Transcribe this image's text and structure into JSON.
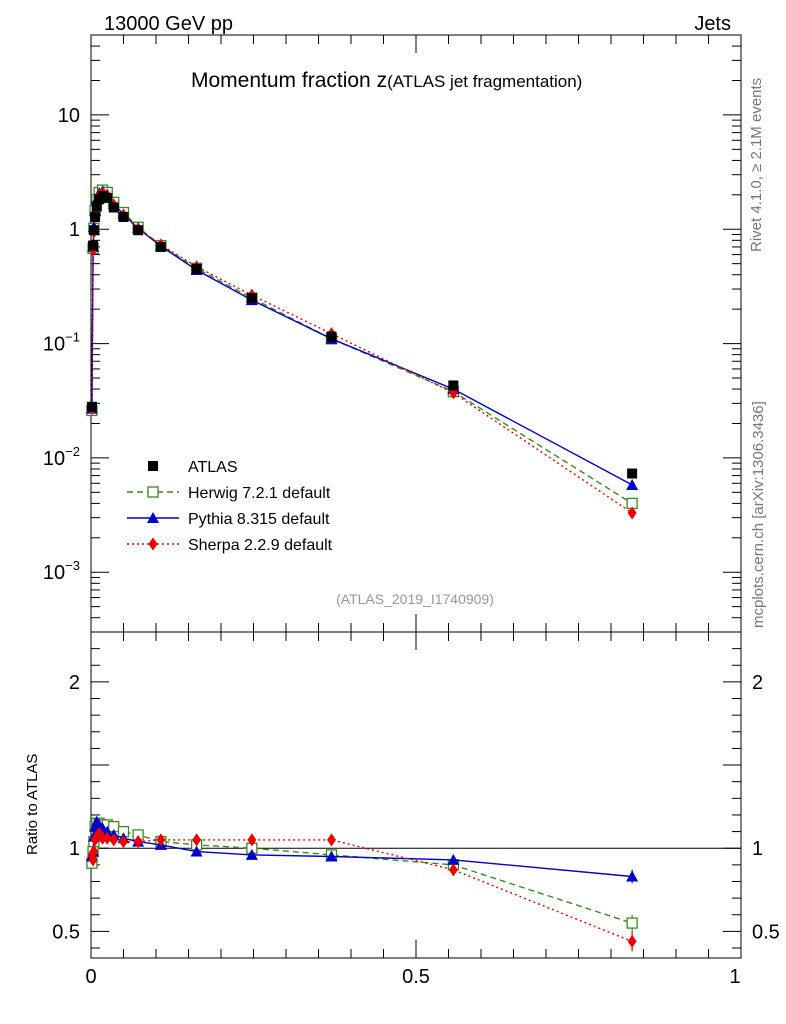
{
  "header": {
    "energy_label": "13000 GeV pp",
    "category_label": "Jets",
    "side_label_top": "Rivet 4.1.0, ≥ 2.1M events",
    "side_label_bottom": "mcplots.cern.ch [arXiv:1306.3436]"
  },
  "chart_data": [
    {
      "type": "line",
      "title_main": "Momentum fraction z",
      "title_sub": "(ATLAS jet fragmentation)",
      "watermark": "(ATLAS_2019_I1740909)",
      "yscale": "log",
      "xlim": [
        0,
        1
      ],
      "ylim": [
        0.0003,
        50
      ],
      "ytick_labels": [
        {
          "value": 10,
          "mant": "10",
          "exp": ""
        },
        {
          "value": 1,
          "mant": "1",
          "exp": ""
        },
        {
          "value": 0.1,
          "mant": "10",
          "exp": "−1"
        },
        {
          "value": 0.01,
          "mant": "10",
          "exp": "−2"
        },
        {
          "value": 0.001,
          "mant": "10",
          "exp": "−3"
        }
      ],
      "legend_position": "lower-left",
      "series": [
        {
          "name": "ATLAS",
          "role": "data",
          "color": "#000000",
          "marker": "square-filled",
          "line": "none",
          "x": [
            0.0014,
            0.0032,
            0.0045,
            0.0063,
            0.0089,
            0.0126,
            0.0178,
            0.025,
            0.035,
            0.05,
            0.0725,
            0.1075,
            0.1625,
            0.2475,
            0.37,
            0.5575,
            0.8325
          ],
          "y": [
            0.028,
            0.72,
            0.98,
            1.28,
            1.58,
            1.83,
            1.95,
            1.88,
            1.55,
            1.28,
            0.98,
            0.7,
            0.45,
            0.25,
            0.115,
            0.043,
            0.0073
          ]
        },
        {
          "name": "Herwig 7.2.1 default",
          "role": "mc",
          "color": "#3a8a1e",
          "marker": "square-open",
          "line": "dashed",
          "x": [
            0.0014,
            0.0032,
            0.0045,
            0.0063,
            0.0089,
            0.0126,
            0.0178,
            0.025,
            0.035,
            0.05,
            0.0725,
            0.1075,
            0.1625,
            0.2475,
            0.37,
            0.5575,
            0.8325
          ],
          "y": [
            0.026,
            0.68,
            1.02,
            1.45,
            1.82,
            2.1,
            2.2,
            2.1,
            1.72,
            1.4,
            1.04,
            0.72,
            0.455,
            0.25,
            0.11,
            0.038,
            0.004
          ]
        },
        {
          "name": "Pythia 8.315 default",
          "role": "mc",
          "color": "#0000cc",
          "marker": "triangle-filled",
          "line": "solid",
          "x": [
            0.0014,
            0.0032,
            0.0045,
            0.0063,
            0.0089,
            0.0126,
            0.0178,
            0.025,
            0.035,
            0.05,
            0.0725,
            0.1075,
            0.1625,
            0.2475,
            0.37,
            0.5575,
            0.8325
          ],
          "y": [
            0.027,
            0.7,
            1.05,
            1.45,
            1.82,
            2.07,
            2.15,
            2.02,
            1.65,
            1.35,
            1.02,
            0.71,
            0.44,
            0.24,
            0.11,
            0.04,
            0.0058
          ]
        },
        {
          "name": "Sherpa 2.2.9 default",
          "role": "mc",
          "color": "#ee0000",
          "marker": "diamond-filled",
          "line": "dotted",
          "x": [
            0.0014,
            0.0032,
            0.0045,
            0.0063,
            0.0089,
            0.0126,
            0.0178,
            0.025,
            0.035,
            0.05,
            0.0725,
            0.1075,
            0.1625,
            0.2475,
            0.37,
            0.5575,
            0.8325
          ],
          "y": [
            0.027,
            0.66,
            0.95,
            1.35,
            1.7,
            2.0,
            2.07,
            1.98,
            1.63,
            1.33,
            1.01,
            0.73,
            0.47,
            0.265,
            0.122,
            0.037,
            0.0033
          ]
        }
      ]
    },
    {
      "type": "line",
      "ylabel": "Ratio to ATLAS",
      "xlim": [
        0,
        1
      ],
      "ylim": [
        0.34,
        2.3
      ],
      "reference_line": 1,
      "ytick_labels": [
        {
          "value": 2,
          "label": "2"
        },
        {
          "value": 1,
          "label": "1"
        },
        {
          "value": 0.5,
          "label": "0.5"
        }
      ],
      "xtick_labels": [
        {
          "value": 0,
          "label": "0"
        },
        {
          "value": 0.5,
          "label": "0.5"
        },
        {
          "value": 1,
          "label": "1"
        }
      ],
      "series": [
        {
          "name": "Herwig 7.2.1 default",
          "color": "#3a8a1e",
          "marker": "square-open",
          "line": "dashed",
          "x": [
            0.0014,
            0.0032,
            0.0045,
            0.0063,
            0.0089,
            0.0126,
            0.0178,
            0.025,
            0.035,
            0.05,
            0.0725,
            0.1075,
            0.1625,
            0.2475,
            0.37,
            0.5575,
            0.8325
          ],
          "y": [
            0.91,
            0.98,
            1.04,
            1.13,
            1.15,
            1.15,
            1.14,
            1.14,
            1.13,
            1.1,
            1.08,
            1.04,
            1.02,
            1.0,
            0.96,
            0.9,
            0.55
          ],
          "err": [
            0,
            0,
            0,
            0,
            0,
            0,
            0,
            0,
            0,
            0,
            0,
            0,
            0,
            0,
            0,
            0,
            0.05
          ]
        },
        {
          "name": "Pythia 8.315 default",
          "color": "#0000cc",
          "marker": "triangle-filled",
          "line": "solid",
          "x": [
            0.0014,
            0.0032,
            0.0045,
            0.0063,
            0.0089,
            0.0126,
            0.0178,
            0.025,
            0.035,
            0.05,
            0.0725,
            0.1075,
            0.1625,
            0.2475,
            0.37,
            0.5575,
            0.8325
          ],
          "y": [
            0.95,
            0.98,
            1.07,
            1.13,
            1.16,
            1.14,
            1.12,
            1.1,
            1.08,
            1.06,
            1.04,
            1.02,
            0.98,
            0.96,
            0.95,
            0.93,
            0.83
          ],
          "err": [
            0,
            0,
            0,
            0,
            0,
            0,
            0,
            0,
            0,
            0,
            0,
            0,
            0,
            0,
            0,
            0,
            0.04
          ]
        },
        {
          "name": "Sherpa 2.2.9 default",
          "color": "#ee0000",
          "marker": "diamond-filled",
          "line": "dotted",
          "x": [
            0.0014,
            0.0032,
            0.0045,
            0.0063,
            0.0089,
            0.0126,
            0.0178,
            0.025,
            0.035,
            0.05,
            0.0725,
            0.1075,
            0.1625,
            0.2475,
            0.37,
            0.5575,
            0.8325
          ],
          "y": [
            0.96,
            0.93,
            0.98,
            1.05,
            1.07,
            1.09,
            1.06,
            1.06,
            1.05,
            1.04,
            1.04,
            1.05,
            1.05,
            1.05,
            1.05,
            0.87,
            0.44
          ],
          "err": [
            0,
            0,
            0,
            0,
            0,
            0,
            0,
            0,
            0,
            0,
            0,
            0,
            0,
            0,
            0,
            0,
            0.06
          ]
        }
      ]
    }
  ]
}
